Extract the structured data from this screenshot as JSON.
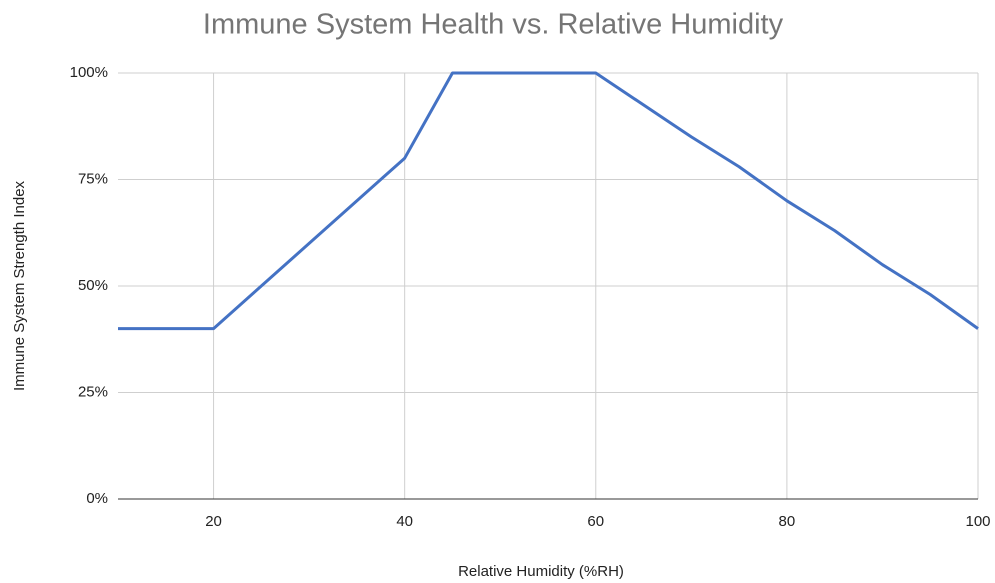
{
  "chart_data": {
    "type": "line",
    "title": "Immune System Health vs. Relative Humidity",
    "xlabel": "Relative Humidity (%RH)",
    "ylabel": "Immune System Strength Index",
    "x": [
      10,
      20,
      40,
      45,
      60,
      70,
      75,
      80,
      85,
      90,
      95,
      100
    ],
    "values": [
      40,
      40,
      80,
      100,
      100,
      85,
      78,
      70,
      63,
      55,
      48,
      40
    ],
    "color": "#4472c4",
    "xlim": [
      10,
      100
    ],
    "xticks": [
      20,
      40,
      60,
      80,
      100
    ],
    "ylim": [
      0,
      100
    ],
    "yticks": [
      {
        "value": 0,
        "label": "0%"
      },
      {
        "value": 25,
        "label": "25%"
      },
      {
        "value": 50,
        "label": "50%"
      },
      {
        "value": 75,
        "label": "75%"
      },
      {
        "value": 100,
        "label": "100%"
      }
    ],
    "grid": true
  }
}
